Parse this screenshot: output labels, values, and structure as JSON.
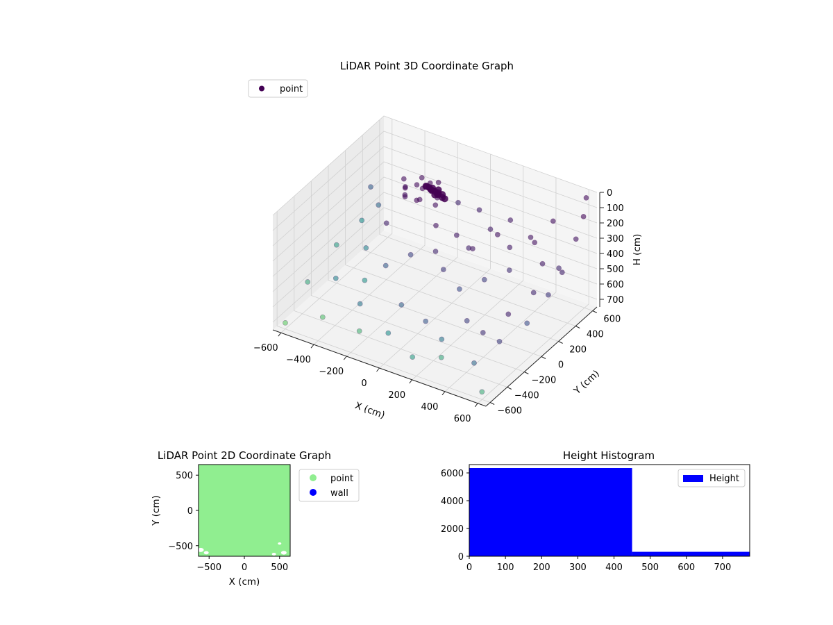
{
  "chart_data": [
    {
      "type": "scatter3d",
      "title": "LiDAR Point 3D Coordinate Graph",
      "xlabel": "X (cm)",
      "ylabel": "Y (cm)",
      "zlabel": "H (cm)",
      "xlim": [
        -650,
        650
      ],
      "ylim": [
        -650,
        650
      ],
      "zlim": [
        0,
        750
      ],
      "z_inverted": true,
      "xticks": [
        -600,
        -400,
        -200,
        0,
        200,
        400,
        600
      ],
      "yticks": [
        -600,
        -400,
        -200,
        0,
        200,
        400,
        600
      ],
      "zticks": [
        0,
        100,
        200,
        300,
        400,
        500,
        600,
        700
      ],
      "legend": {
        "entries": [
          "point"
        ],
        "placement": "top-left"
      },
      "colormap": "viridis",
      "dominant_color": "#440154",
      "grid": true,
      "series": [
        {
          "name": "point",
          "points": [
            [
              -400,
              420,
              260
            ],
            [
              -350,
              460,
              240
            ],
            [
              -300,
              430,
              230
            ],
            [
              -260,
              480,
              250
            ],
            [
              -220,
              450,
              270
            ],
            [
              -380,
              380,
              290
            ],
            [
              -320,
              400,
              300
            ],
            [
              -280,
              360,
              260
            ],
            [
              -240,
              420,
              220
            ],
            [
              -200,
              390,
              280
            ],
            [
              -340,
              500,
              210
            ],
            [
              -300,
              520,
              240
            ],
            [
              -420,
              460,
              280
            ],
            [
              -260,
              540,
              230
            ],
            [
              -360,
              340,
              250
            ],
            [
              -150,
              300,
              350
            ],
            [
              -50,
              350,
              400
            ],
            [
              50,
              300,
              420
            ],
            [
              100,
              250,
              380
            ],
            [
              -100,
              200,
              450
            ],
            [
              200,
              350,
              300
            ],
            [
              300,
              300,
              320
            ],
            [
              350,
              200,
              400
            ],
            [
              250,
              100,
              450
            ],
            [
              150,
              0,
              500
            ],
            [
              0,
              100,
              480
            ],
            [
              -200,
              100,
              460
            ],
            [
              -300,
              0,
              520
            ],
            [
              -400,
              200,
              380
            ],
            [
              -500,
              300,
              350
            ],
            [
              400,
              400,
              300
            ],
            [
              500,
              300,
              350
            ],
            [
              550,
              100,
              420
            ],
            [
              500,
              -100,
              480
            ],
            [
              450,
              -300,
              520
            ],
            [
              300,
              -200,
              550
            ],
            [
              100,
              -300,
              580
            ],
            [
              -100,
              -200,
              600
            ],
            [
              -300,
              -300,
              620
            ],
            [
              -500,
              -200,
              580
            ],
            [
              -600,
              0,
              500
            ],
            [
              -550,
              200,
              420
            ],
            [
              600,
              500,
              250
            ],
            [
              620,
              550,
              120
            ],
            [
              600,
              620,
              40
            ],
            [
              450,
              520,
              200
            ],
            [
              200,
              500,
              280
            ],
            [
              0,
              520,
              300
            ],
            [
              -150,
              560,
              330
            ],
            [
              300,
              -500,
              640
            ],
            [
              500,
              -500,
              600
            ],
            [
              550,
              -300,
              540
            ],
            [
              -200,
              -500,
              660
            ],
            [
              -450,
              -450,
              690
            ],
            [
              600,
              -600,
              700
            ],
            [
              -600,
              -600,
              710
            ],
            [
              620,
              300,
              360
            ],
            [
              350,
              450,
              310
            ],
            [
              -50,
              -450,
              640
            ],
            [
              150,
              -550,
              670
            ],
            [
              640,
              -150,
              460
            ],
            [
              640,
              100,
              400
            ],
            [
              600,
              300,
              340
            ],
            [
              -600,
              400,
              320
            ],
            [
              -620,
              -300,
              600
            ],
            [
              -450,
              500,
              260
            ],
            [
              -420,
              0,
              450
            ],
            [
              -350,
              -150,
              560
            ],
            [
              120,
              420,
              330
            ],
            [
              250,
              -400,
              590
            ]
          ],
          "color_values": [
            0.02,
            0.03,
            0.02,
            0.05,
            0.03,
            0.04,
            0.02,
            0.03,
            0.04,
            0.05,
            0.03,
            0.02,
            0.04,
            0.03,
            0.05,
            0.06,
            0.08,
            0.1,
            0.07,
            0.12,
            0.06,
            0.08,
            0.15,
            0.2,
            0.25,
            0.18,
            0.22,
            0.3,
            0.1,
            0.35,
            0.05,
            0.08,
            0.12,
            0.1,
            0.15,
            0.2,
            0.28,
            0.32,
            0.4,
            0.45,
            0.55,
            0.5,
            0.06,
            0.02,
            0.03,
            0.05,
            0.08,
            0.1,
            0.12,
            0.6,
            0.35,
            0.2,
            0.65,
            0.7,
            0.62,
            0.75,
            0.1,
            0.06,
            0.5,
            0.55,
            0.25,
            0.18,
            0.12,
            0.3,
            0.6,
            0.04,
            0.45,
            0.52,
            0.09,
            0.4
          ]
        }
      ]
    },
    {
      "type": "scatter",
      "title": "LiDAR Point 2D Coordinate Graph",
      "xlabel": "X (cm)",
      "ylabel": "Y (cm)",
      "xlim": [
        -650,
        650
      ],
      "ylim": [
        -650,
        650
      ],
      "xticks": [
        -500,
        0,
        500
      ],
      "yticks": [
        -500,
        0,
        500
      ],
      "legend": {
        "entries": [
          "point",
          "wall"
        ],
        "placement": "outside-right"
      },
      "series": [
        {
          "name": "point",
          "color": "#90ee90",
          "coverage": "dense, fills most of the area"
        },
        {
          "name": "wall",
          "color": "#0000ff",
          "points": []
        }
      ]
    },
    {
      "type": "bar",
      "title": "Height Histogram",
      "xlim": [
        0,
        775
      ],
      "ylim": [
        0,
        6600
      ],
      "xticks": [
        0,
        100,
        200,
        300,
        400,
        500,
        600,
        700
      ],
      "yticks": [
        0,
        2000,
        4000,
        6000
      ],
      "legend": {
        "entries": [
          "Height"
        ],
        "placement": "top-right"
      },
      "series": [
        {
          "name": "Height",
          "color": "#0000ff",
          "bins": [
            [
              0,
              450
            ],
            [
              450,
              775
            ]
          ],
          "values": [
            6350,
            320
          ]
        }
      ]
    }
  ]
}
